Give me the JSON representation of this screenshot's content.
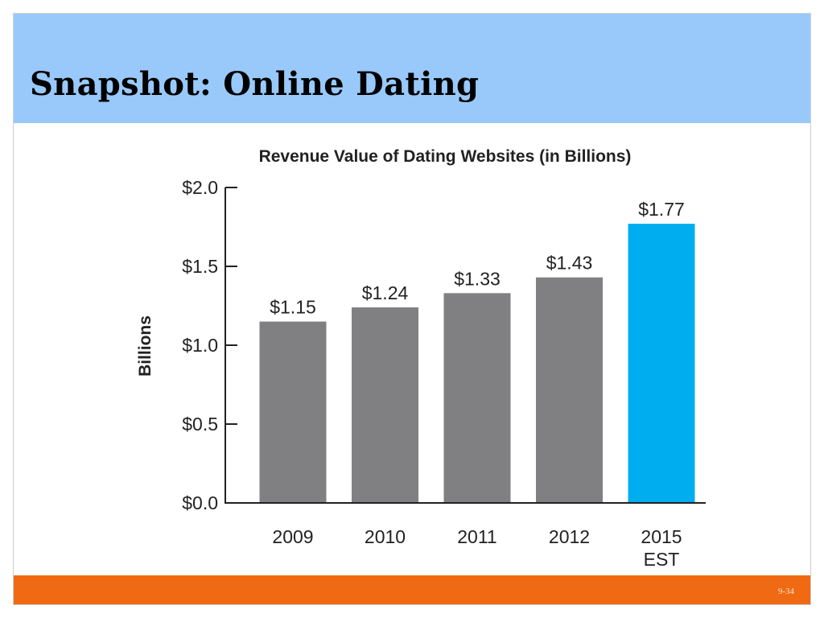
{
  "slide": {
    "title": "Snapshot: Online Dating",
    "page_number": "9-34"
  },
  "colors": {
    "header": "#99c9fb",
    "footer": "#ef6a12",
    "bar_default": "#808083",
    "bar_highlight": "#00adef",
    "axis": "#222222"
  },
  "chart_data": {
    "type": "bar",
    "title": "Revenue Value of Dating Websites (in Billions)",
    "ylabel": "Billions",
    "xlabel": "",
    "ylim": [
      0,
      2.0
    ],
    "y_ticks": [
      0,
      0.5,
      1.0,
      1.5,
      2.0
    ],
    "y_tick_labels": [
      "$0.0",
      "$0.5",
      "$1.0",
      "$1.5",
      "$2.0"
    ],
    "categories": [
      [
        "2009"
      ],
      [
        "2010"
      ],
      [
        "2011"
      ],
      [
        "2012"
      ],
      [
        "2015",
        "EST"
      ]
    ],
    "values": [
      1.15,
      1.24,
      1.33,
      1.43,
      1.77
    ],
    "data_labels": [
      "$1.15",
      "$1.24",
      "$1.33",
      "$1.43",
      "$1.77"
    ],
    "highlight_index": 4,
    "grid": false,
    "legend": "none"
  }
}
